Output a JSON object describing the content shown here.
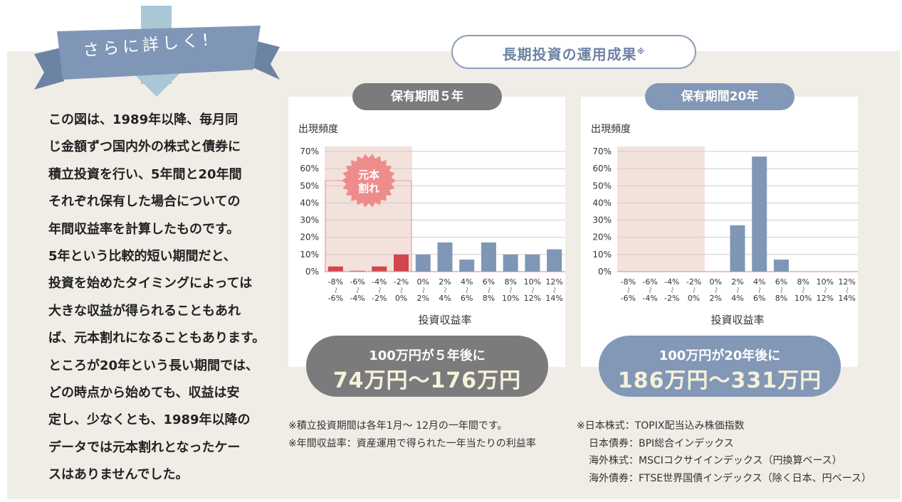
{
  "ribbon_label": "さらに詳しく!",
  "description": "この図は、1989年以降、毎月同\nじ金額ずつ国内外の株式と債券に\n積立投資を行い、5年間と20年間\nそれぞれ保有した場合についての\n年間収益率を計算したものです。\n5年という比較的短い期間だと、\n投資を始めたタイミングによっては\n大きな収益が得られることもあれ\nば、元本割れになることもあります。\nところが20年という長い期間では、\nどの時点から始めても、収益は安\n定し、少なくとも、1989年以降の\nデータでは元本割れとなったケー\nスはありませんでした。",
  "main_title": "長期投資の運用成果",
  "main_title_mark": "※",
  "colors": {
    "loss_red": "#d2454d",
    "bar_blue": "#7f97b5",
    "tag_gray": "#7b7b7d",
    "tag_blue": "#8397b6",
    "loss_shade": "#f3e1dc",
    "burst": "#ee8c8c"
  },
  "chart_data": [
    {
      "type": "bar",
      "tag": "保有期間５年",
      "ylabel": "出現頻度",
      "xlabel": "投資収益率",
      "ylim": [
        0,
        70
      ],
      "yticks": [
        "0%",
        "10%",
        "20%",
        "30%",
        "40%",
        "50%",
        "60%",
        "70%"
      ],
      "categories": [
        [
          "-8%",
          "-6%"
        ],
        [
          "-6%",
          "-4%"
        ],
        [
          "-4%",
          "-2%"
        ],
        [
          "-2%",
          "0%"
        ],
        [
          "0%",
          "2%"
        ],
        [
          "2%",
          "4%"
        ],
        [
          "4%",
          "6%"
        ],
        [
          "6%",
          "8%"
        ],
        [
          "8%",
          "10%"
        ],
        [
          "10%",
          "12%"
        ],
        [
          "12%",
          "14%"
        ]
      ],
      "values": [
        3,
        0.5,
        3,
        10,
        10,
        17,
        7,
        17,
        10,
        10,
        13
      ],
      "loss_bins": 4,
      "callout": [
        "元本",
        "割れ"
      ],
      "result_line1": "100万円が５年後に",
      "result_line2": "74万円〜176万円"
    },
    {
      "type": "bar",
      "tag": "保有期間20年",
      "ylabel": "出現頻度",
      "xlabel": "投資収益率",
      "ylim": [
        0,
        70
      ],
      "yticks": [
        "0%",
        "10%",
        "20%",
        "30%",
        "40%",
        "50%",
        "60%",
        "70%"
      ],
      "categories": [
        [
          "-8%",
          "-6%"
        ],
        [
          "-6%",
          "-4%"
        ],
        [
          "-4%",
          "-2%"
        ],
        [
          "-2%",
          "0%"
        ],
        [
          "0%",
          "2%"
        ],
        [
          "2%",
          "4%"
        ],
        [
          "4%",
          "6%"
        ],
        [
          "6%",
          "8%"
        ],
        [
          "8%",
          "10%"
        ],
        [
          "10%",
          "12%"
        ],
        [
          "12%",
          "14%"
        ]
      ],
      "values": [
        0,
        0,
        0,
        0,
        0,
        27,
        67,
        7,
        0,
        0,
        0
      ],
      "loss_bins": 4,
      "result_line1": "100万円が20年後に",
      "result_line2": "186万円〜331万円"
    }
  ],
  "notes_left": [
    "※積立投資期間は各年1月〜 12月の一年間です。",
    "※年間収益率：資産運用で得られた一年当たりの利益率"
  ],
  "notes_right": [
    "※日本株式：TOPIX配当込み株価指数",
    "日本債券：BPI総合インデックス",
    "海外株式：MSCIコクサイインデックス（円換算ベース）",
    "海外債券：FTSE世界国債インデックス（除く日本、円ベース）"
  ]
}
